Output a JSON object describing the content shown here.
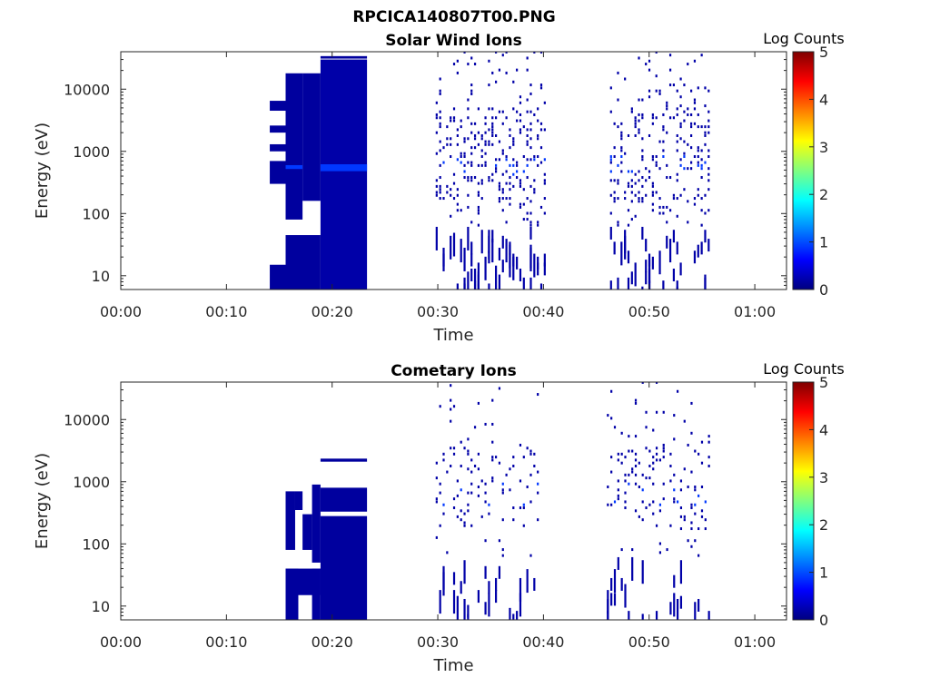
{
  "figure": {
    "title": "RPCICA140807T00.PNG"
  },
  "colorbar": {
    "label": "Log Counts",
    "range": [
      0,
      5
    ],
    "ticks": [
      "0",
      "1",
      "2",
      "3",
      "4",
      "5"
    ],
    "colormap": "jet",
    "colors": [
      "#00007f",
      "#0000ff",
      "#007fff",
      "#00ffff",
      "#7fff7f",
      "#ffff00",
      "#ff7f00",
      "#ff0000",
      "#7f0000"
    ]
  },
  "chart_data": [
    {
      "type": "heatmap",
      "title": "Solar Wind Ions",
      "xlabel": "Time",
      "ylabel": "Energy (eV)",
      "yscale": "log",
      "xlim_minutes": [
        0,
        63
      ],
      "ylim": [
        6,
        40000
      ],
      "xticks": [
        {
          "label": "00:00",
          "value": 0
        },
        {
          "label": "00:10",
          "value": 10
        },
        {
          "label": "00:20",
          "value": 20
        },
        {
          "label": "00:30",
          "value": 30
        },
        {
          "label": "00:40",
          "value": 40
        },
        {
          "label": "00:50",
          "value": 50
        },
        {
          "label": "01:00",
          "value": 60
        }
      ],
      "yticks": [
        {
          "label": "10",
          "value": 10
        },
        {
          "label": "100",
          "value": 100
        },
        {
          "label": "1000",
          "value": 1000
        },
        {
          "label": "10000",
          "value": 10000
        }
      ],
      "cells": [
        {
          "t0": 14.1,
          "t1": 15.6,
          "e0": 6,
          "e1": 15,
          "v": 0.15
        },
        {
          "t0": 15.6,
          "t1": 18.9,
          "e0": 6,
          "e1": 45,
          "v": 0.15
        },
        {
          "t0": 18.9,
          "t1": 23.3,
          "e0": 6,
          "e1": 30000,
          "v": 0.2
        },
        {
          "t0": 15.6,
          "t1": 17.2,
          "e0": 80,
          "e1": 18000,
          "v": 0.15
        },
        {
          "t0": 17.2,
          "t1": 18.9,
          "e0": 160,
          "e1": 18000,
          "v": 0.15
        },
        {
          "t0": 14.1,
          "t1": 15.6,
          "e0": 300,
          "e1": 700,
          "v": 0.15
        },
        {
          "t0": 14.1,
          "t1": 15.6,
          "e0": 1000,
          "e1": 1300,
          "v": 0.15
        },
        {
          "t0": 14.1,
          "t1": 15.6,
          "e0": 2000,
          "e1": 2600,
          "v": 0.15
        },
        {
          "t0": 14.1,
          "t1": 15.6,
          "e0": 4500,
          "e1": 6500,
          "v": 0.15
        },
        {
          "t0": 18.9,
          "t1": 23.3,
          "e0": 31000,
          "e1": 34000,
          "v": 0.15
        },
        {
          "t0": 15.6,
          "t1": 17.2,
          "e0": 520,
          "e1": 600,
          "v": 0.9
        },
        {
          "t0": 18.9,
          "t1": 23.3,
          "e0": 480,
          "e1": 620,
          "v": 0.9
        }
      ],
      "scatter_bands": [
        {
          "t0": 29.8,
          "t1": 40.2,
          "density": 0.35
        },
        {
          "t0": 46.3,
          "t1": 55.6,
          "density": 0.35
        }
      ]
    },
    {
      "type": "heatmap",
      "title": "Cometary Ions",
      "xlabel": "Time",
      "ylabel": "Energy (eV)",
      "yscale": "log",
      "xlim_minutes": [
        0,
        63
      ],
      "ylim": [
        6,
        40000
      ],
      "xticks": [
        {
          "label": "00:00",
          "value": 0
        },
        {
          "label": "00:10",
          "value": 10
        },
        {
          "label": "00:20",
          "value": 20
        },
        {
          "label": "00:30",
          "value": 30
        },
        {
          "label": "00:40",
          "value": 40
        },
        {
          "label": "00:50",
          "value": 50
        },
        {
          "label": "01:00",
          "value": 60
        }
      ],
      "yticks": [
        {
          "label": "10",
          "value": 10
        },
        {
          "label": "100",
          "value": 100
        },
        {
          "label": "1000",
          "value": 1000
        },
        {
          "label": "10000",
          "value": 10000
        }
      ],
      "cells": [
        {
          "t0": 15.6,
          "t1": 16.8,
          "e0": 6,
          "e1": 40,
          "v": 0.15
        },
        {
          "t0": 18.1,
          "t1": 18.9,
          "e0": 6,
          "e1": 40,
          "v": 0.15
        },
        {
          "t0": 15.6,
          "t1": 18.9,
          "e0": 15,
          "e1": 40,
          "v": 0.15
        },
        {
          "t0": 15.6,
          "t1": 16.5,
          "e0": 80,
          "e1": 700,
          "v": 0.15
        },
        {
          "t0": 16.5,
          "t1": 17.2,
          "e0": 350,
          "e1": 700,
          "v": 0.15
        },
        {
          "t0": 17.2,
          "t1": 18.1,
          "e0": 80,
          "e1": 300,
          "v": 0.15
        },
        {
          "t0": 18.1,
          "t1": 18.9,
          "e0": 50,
          "e1": 900,
          "v": 0.15
        },
        {
          "t0": 18.9,
          "t1": 23.3,
          "e0": 6,
          "e1": 280,
          "v": 0.15
        },
        {
          "t0": 18.9,
          "t1": 23.3,
          "e0": 330,
          "e1": 800,
          "v": 0.15
        },
        {
          "t0": 18.9,
          "t1": 23.3,
          "e0": 2100,
          "e1": 2350,
          "v": 0.15
        }
      ],
      "scatter_bands": [
        {
          "t0": 29.8,
          "t1": 39.6,
          "density": 0.18
        },
        {
          "t0": 46.0,
          "t1": 55.8,
          "density": 0.18
        }
      ]
    }
  ]
}
